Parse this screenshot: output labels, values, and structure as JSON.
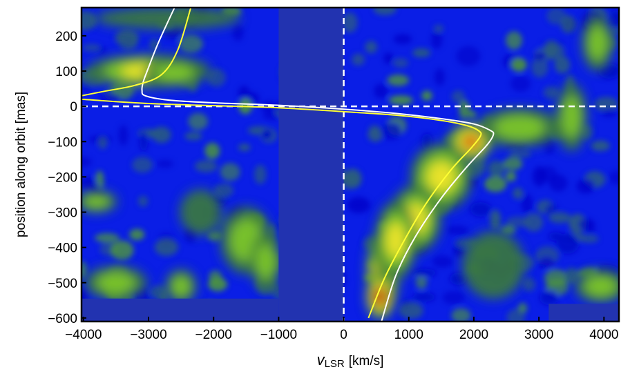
{
  "chart_data": {
    "type": "heatmap",
    "title": "",
    "xlabel": "v_LSR [km/s]",
    "xlabel_main": "v",
    "xlabel_sub": "LSR",
    "xlabel_units": "[km/s]",
    "ylabel": "position along orbit [mas]",
    "xlim": [
      -4030,
      4230
    ],
    "ylim": [
      -610,
      280
    ],
    "grid": false,
    "legend": "none",
    "xticks": [
      -4000,
      -3000,
      -2000,
      -1000,
      0,
      1000,
      2000,
      3000,
      4000
    ],
    "xtick_labels": [
      "−4000",
      "−3000",
      "−2000",
      "−1000",
      "0",
      "1000",
      "2000",
      "3000",
      "4000"
    ],
    "yticks": [
      200,
      100,
      0,
      -100,
      -200,
      -300,
      -400,
      -500,
      -600
    ],
    "ytick_labels": [
      "200",
      "100",
      "0",
      "−100",
      "−200",
      "−300",
      "−400",
      "−500",
      "−600"
    ],
    "colormap": [
      "#0000ff",
      "#3a7a3a",
      "#7fc92a",
      "#f3e52a",
      "#d2300a",
      "#a00000"
    ],
    "mask_color": "#2233b0",
    "masked_regions": [
      {
        "x": [
          -1000,
          0
        ],
        "y": [
          -610,
          280
        ],
        "note": "no data"
      },
      {
        "x": [
          -4030,
          -1000
        ],
        "y": [
          -610,
          -545
        ],
        "note": "no data"
      },
      {
        "x": [
          3150,
          4230
        ],
        "y": [
          -610,
          -560
        ],
        "note": "no data"
      }
    ],
    "reference_lines": [
      {
        "orientation": "vertical",
        "value": 0,
        "style": "dashed",
        "color": "#ffffff"
      },
      {
        "orientation": "horizontal",
        "value": 0,
        "style": "dashed",
        "color": "#ffffff"
      }
    ],
    "emission_features": [
      {
        "v": 600,
        "pos": -470,
        "intensity": 1.0,
        "sv": 160,
        "sp": 80
      },
      {
        "v": 650,
        "pos": -420,
        "intensity": 0.95,
        "sv": 120,
        "sp": 50
      },
      {
        "v": 560,
        "pos": -540,
        "intensity": 0.9,
        "sv": 140,
        "sp": 40
      },
      {
        "v": 1950,
        "pos": -100,
        "intensity": 0.85,
        "sv": 220,
        "sp": 35
      },
      {
        "v": 1500,
        "pos": -200,
        "intensity": 0.55,
        "sv": 300,
        "sp": 60
      },
      {
        "v": 1100,
        "pos": -320,
        "intensity": 0.5,
        "sv": 250,
        "sp": 60
      },
      {
        "v": 800,
        "pos": -380,
        "intensity": 0.55,
        "sv": 200,
        "sp": 70
      },
      {
        "v": 2700,
        "pos": -60,
        "intensity": 0.45,
        "sv": 400,
        "sp": 35
      },
      {
        "v": -3000,
        "pos": 100,
        "intensity": 0.5,
        "sv": 600,
        "sp": 30
      },
      {
        "v": -2600,
        "pos": 95,
        "intensity": 0.45,
        "sv": 300,
        "sp": 25
      },
      {
        "v": 3900,
        "pos": 180,
        "intensity": 0.35,
        "sv": 150,
        "sp": 50
      },
      {
        "v": 3950,
        "pos": -510,
        "intensity": 0.45,
        "sv": 250,
        "sp": 30
      },
      {
        "v": -1500,
        "pos": -380,
        "intensity": 0.35,
        "sv": 250,
        "sp": 60
      },
      {
        "v": -1200,
        "pos": -440,
        "intensity": 0.35,
        "sv": 150,
        "sp": 50
      },
      {
        "v": -3800,
        "pos": -270,
        "intensity": 0.3,
        "sv": 200,
        "sp": 20
      },
      {
        "v": -2200,
        "pos": -300,
        "intensity": 0.25,
        "sv": 200,
        "sp": 40
      },
      {
        "v": -3500,
        "pos": -500,
        "intensity": 0.3,
        "sv": 300,
        "sp": 30
      },
      {
        "v": -2500,
        "pos": -510,
        "intensity": 0.3,
        "sv": 150,
        "sp": 30
      },
      {
        "v": -2700,
        "pos": 250,
        "intensity": 0.25,
        "sv": 700,
        "sp": 20
      },
      {
        "v": 3500,
        "pos": -30,
        "intensity": 0.3,
        "sv": 150,
        "sp": 60
      },
      {
        "v": 2300,
        "pos": -450,
        "intensity": 0.2,
        "sv": 300,
        "sp": 60
      }
    ],
    "series": [
      {
        "name": "orbit model (white)",
        "color": "#ffffff",
        "points": [
          [
            -2600,
            280
          ],
          [
            -2850,
            180
          ],
          [
            -3000,
            110
          ],
          [
            -3080,
            70
          ],
          [
            -3100,
            45
          ],
          [
            -3050,
            30
          ],
          [
            -2700,
            18
          ],
          [
            -2000,
            10
          ],
          [
            -1000,
            3
          ],
          [
            0,
            -8
          ],
          [
            800,
            -20
          ],
          [
            1500,
            -35
          ],
          [
            2000,
            -50
          ],
          [
            2250,
            -68
          ],
          [
            2300,
            -80
          ],
          [
            2200,
            -110
          ],
          [
            1900,
            -170
          ],
          [
            1500,
            -260
          ],
          [
            1100,
            -370
          ],
          [
            800,
            -480
          ],
          [
            580,
            -610
          ]
        ]
      },
      {
        "name": "orbit model (yellow)",
        "color": "#ffff33",
        "points": [
          [
            -2350,
            280
          ],
          [
            -2550,
            160
          ],
          [
            -2800,
            90
          ],
          [
            -3200,
            60
          ],
          [
            -3700,
            42
          ],
          [
            -4030,
            30
          ],
          null,
          [
            -4030,
            20
          ],
          [
            -3000,
            8
          ],
          [
            -2000,
            2
          ],
          [
            -1000,
            -4
          ],
          [
            0,
            -15
          ],
          [
            800,
            -25
          ],
          [
            1500,
            -40
          ],
          [
            1900,
            -55
          ],
          [
            2080,
            -70
          ],
          [
            2100,
            -85
          ],
          [
            1950,
            -120
          ],
          [
            1650,
            -180
          ],
          [
            1250,
            -280
          ],
          [
            900,
            -390
          ],
          [
            620,
            -490
          ],
          [
            380,
            -600
          ]
        ]
      }
    ]
  }
}
